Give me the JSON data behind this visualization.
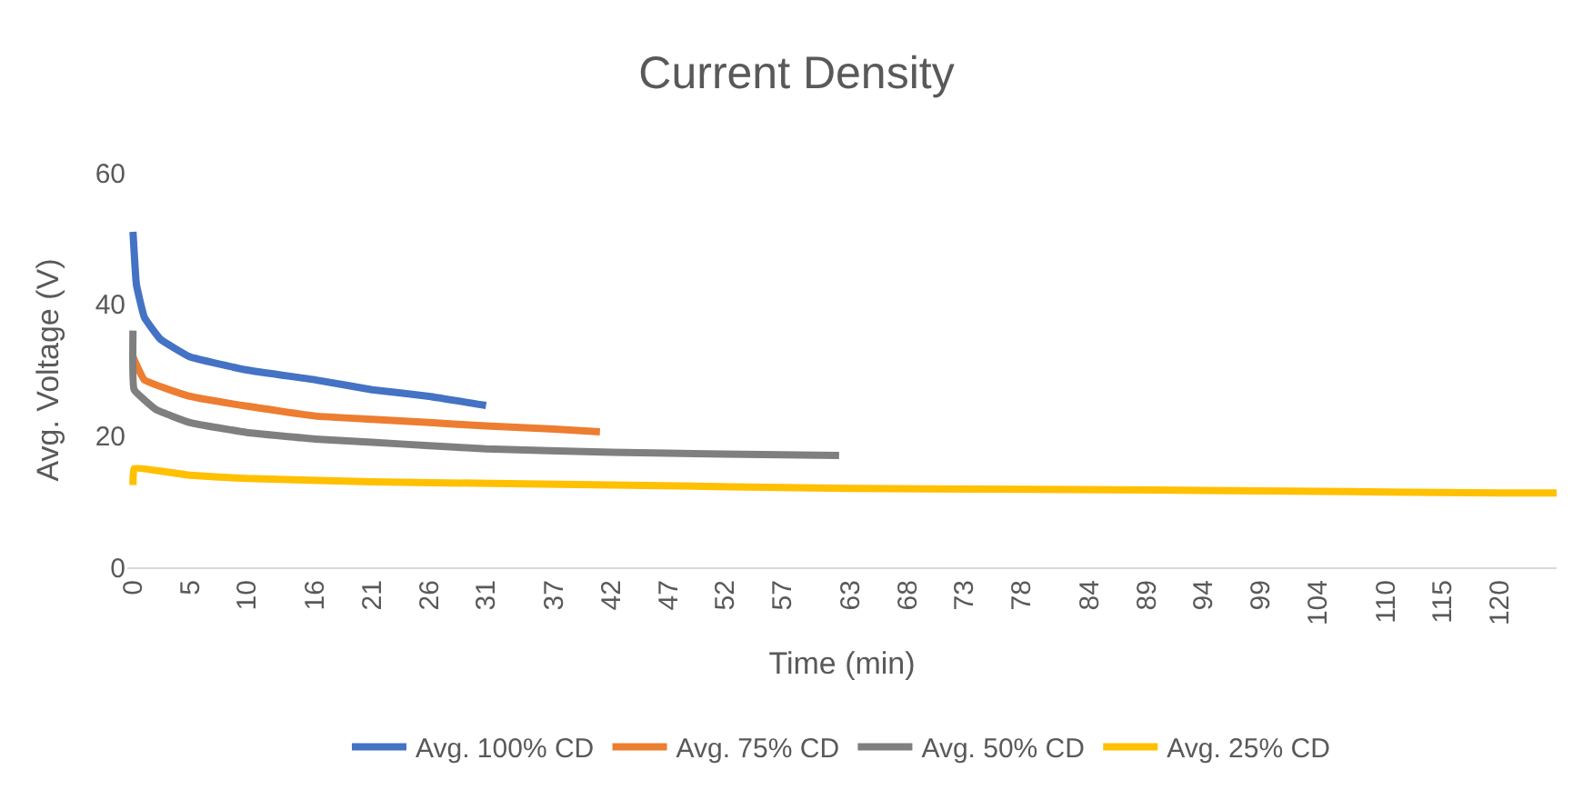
{
  "chart_data": {
    "type": "line",
    "title": "Current Density",
    "xlabel": "Time (min)",
    "ylabel": "Avg. Voltage (V)",
    "xlim": [
      -0.5,
      125
    ],
    "xticks": [
      0,
      5,
      10,
      16,
      21,
      26,
      31,
      37,
      42,
      47,
      52,
      57,
      63,
      68,
      73,
      78,
      84,
      89,
      94,
      99,
      104,
      110,
      115,
      120
    ],
    "ylim": [
      0,
      60
    ],
    "yticks": [
      0,
      20,
      40,
      60
    ],
    "grid": false,
    "legend": "bottom",
    "marker": "none",
    "line_style": "solid",
    "series": [
      {
        "name": "Avg. 100% CD",
        "color": "#4472c4",
        "x": [
          0,
          0.3,
          1,
          2.4,
          5,
          10,
          16,
          21,
          26,
          31
        ],
        "values": [
          51,
          43,
          38,
          34.7,
          32,
          30,
          28.5,
          27,
          26,
          24.6
        ]
      },
      {
        "name": "Avg. 75% CD",
        "color": "#ed7d31",
        "x": [
          0,
          1,
          5,
          10,
          16,
          21,
          26,
          31,
          37,
          41
        ],
        "values": [
          32,
          28.5,
          26,
          24.5,
          23,
          22.5,
          22,
          21.5,
          21,
          20.6
        ]
      },
      {
        "name": "Avg. 50% CD",
        "color": "#7f7f7f",
        "x": [
          0,
          0.1,
          2,
          5,
          10,
          16,
          21,
          26,
          31,
          42,
          52,
          62
        ],
        "values": [
          36,
          27,
          24,
          22,
          20.5,
          19.5,
          19,
          18.5,
          18,
          17.5,
          17.2,
          17
        ]
      },
      {
        "name": "Avg. 25% CD",
        "color": "#ffc000",
        "x": [
          0,
          0.1,
          5,
          10,
          21,
          42,
          63,
          94,
          120,
          125
        ],
        "values": [
          12.5,
          15,
          14,
          13.5,
          13,
          12.5,
          12,
          11.7,
          11.3,
          11.3
        ]
      }
    ]
  }
}
